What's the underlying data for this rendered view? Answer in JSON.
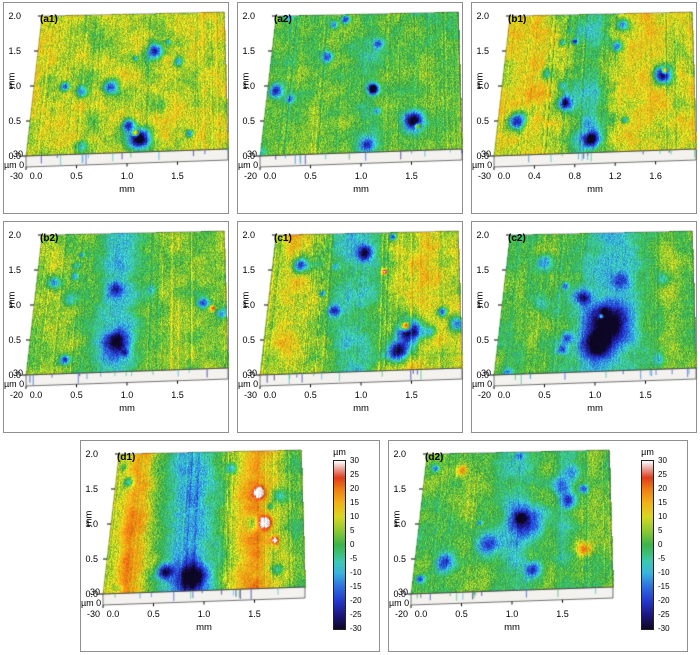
{
  "figure": {
    "background": "#ffffff",
    "panel_border_color": "#8f8f8f",
    "description": "3D optical surface topography maps of wear tracks, eight panels (a1)-(d2)"
  },
  "chart_data": {
    "type": "heatmap",
    "subtype": "3d-surface-topography",
    "xy_unit": "mm",
    "z_unit": "µm",
    "x_range_mm": [
      0.0,
      2.0
    ],
    "y_range_mm": [
      0.0,
      2.0
    ],
    "z_range_um": [
      -30,
      30
    ],
    "colorbar": {
      "unit": "µm",
      "ticks": [
        "30",
        "25",
        "20",
        "15",
        "10",
        "5",
        "0",
        "-5",
        "-10",
        "-15",
        "-20",
        "-25",
        "-30"
      ]
    },
    "colormap": [
      {
        "t": 0.0,
        "c": "#0d0726"
      },
      {
        "t": 0.083,
        "c": "#1c1680"
      },
      {
        "t": 0.167,
        "c": "#2438cc"
      },
      {
        "t": 0.25,
        "c": "#2e6ee0"
      },
      {
        "t": 0.333,
        "c": "#38b4dc"
      },
      {
        "t": 0.4,
        "c": "#3cc8b4"
      },
      {
        "t": 0.458,
        "c": "#3cbe6e"
      },
      {
        "t": 0.5,
        "c": "#3cb44a"
      },
      {
        "t": 0.583,
        "c": "#8cc832"
      },
      {
        "t": 0.667,
        "c": "#d7d722"
      },
      {
        "t": 0.75,
        "c": "#f2b217"
      },
      {
        "t": 0.833,
        "c": "#ef7d12"
      },
      {
        "t": 0.9,
        "c": "#e03c1c"
      },
      {
        "t": 0.955,
        "c": "#eaa49c"
      },
      {
        "t": 1.0,
        "c": "#ffffff"
      }
    ],
    "panels": [
      {
        "label": "(a1)",
        "x_label": "mm",
        "y_label": "mm",
        "y_ticks": [
          "2.0",
          "1.5",
          "1.0",
          "0.5",
          "0.0"
        ],
        "x_ticks": [
          "0.0",
          "0.5",
          "1.0",
          "1.5"
        ],
        "z_ticks": [
          "30",
          "µm 0",
          "-30"
        ],
        "has_colorbar": false,
        "surface": {
          "seed": 11,
          "base": 8.5,
          "noise": 5.5,
          "grain": 2.5,
          "streak": 1.6,
          "bands": [
            {
              "c": 0.3,
              "w": 0.05,
              "a": -4
            },
            {
              "c": 0.62,
              "w": 0.05,
              "a": -3
            }
          ],
          "blobs": [
            {
              "x": 0.56,
              "y": 0.9,
              "r": 0.055,
              "a": -42
            },
            {
              "x": 0.5,
              "y": 0.8,
              "r": 0.035,
              "a": -28
            },
            {
              "x": 0.54,
              "y": 0.86,
              "r": 0.016,
              "a": 38
            },
            {
              "x": 0.25,
              "y": 0.55,
              "r": 0.03,
              "a": -20
            },
            {
              "x": 0.75,
              "y": 0.35,
              "r": 0.025,
              "a": -18
            }
          ],
          "pits": 7,
          "pitDepth": 22
        }
      },
      {
        "label": "(a2)",
        "x_label": "mm",
        "y_label": "mm",
        "y_ticks": [
          "2.0",
          "1.5",
          "1.0",
          "0.5",
          "0.0"
        ],
        "x_ticks": [
          "0.0",
          "0.5",
          "1.0",
          "1.5"
        ],
        "z_ticks": [
          "30",
          "µm 0",
          "-20"
        ],
        "has_colorbar": false,
        "surface": {
          "seed": 22,
          "base": 2.5,
          "noise": 4,
          "grain": 2.5,
          "streak": 1.4,
          "bands": [
            {
              "c": 0.52,
              "w": 0.07,
              "a": -4
            }
          ],
          "blobs": [
            {
              "x": 0.76,
              "y": 0.78,
              "r": 0.05,
              "a": -34
            },
            {
              "x": 0.78,
              "y": 0.82,
              "r": 0.015,
              "a": 30
            },
            {
              "x": 0.3,
              "y": 0.3,
              "r": 0.03,
              "a": -22
            },
            {
              "x": 0.55,
              "y": 0.55,
              "r": 0.025,
              "a": -18
            },
            {
              "x": 0.12,
              "y": 0.6,
              "r": 0.02,
              "a": -16
            }
          ],
          "pits": 9,
          "pitDepth": 18
        }
      },
      {
        "label": "(b1)",
        "x_label": "mm",
        "y_label": "mm",
        "y_ticks": [
          "2.0",
          "1.5",
          "1.0",
          "0.5",
          "0.0"
        ],
        "x_ticks": [
          "0.0",
          "0.4",
          "0.8",
          "1.2",
          "1.6"
        ],
        "z_ticks": [
          "30",
          "µm 0",
          "-30"
        ],
        "has_colorbar": false,
        "surface": {
          "seed": 33,
          "base": 9,
          "noise": 5,
          "grain": 2.5,
          "streak": 1.8,
          "bands": [
            {
              "c": 0.45,
              "w": 0.13,
              "a": -13
            },
            {
              "c": 0.18,
              "w": 0.06,
              "a": 3
            },
            {
              "c": 0.78,
              "w": 0.06,
              "a": 2
            }
          ],
          "blobs": [
            {
              "x": 0.84,
              "y": 0.45,
              "r": 0.05,
              "a": -40
            },
            {
              "x": 0.85,
              "y": 0.42,
              "r": 0.015,
              "a": 34
            },
            {
              "x": 0.1,
              "y": 0.75,
              "r": 0.045,
              "a": -30
            },
            {
              "x": 0.48,
              "y": 0.9,
              "r": 0.04,
              "a": -30
            },
            {
              "x": 0.62,
              "y": 0.08,
              "r": 0.03,
              "a": -22
            },
            {
              "x": 0.3,
              "y": 0.2,
              "r": 0.02,
              "a": -16
            }
          ],
          "pits": 7,
          "pitDepth": 20
        }
      },
      {
        "label": "(b2)",
        "x_label": "mm",
        "y_label": "mm",
        "y_ticks": [
          "2.0",
          "1.5",
          "1.0",
          "0.5",
          "0.0"
        ],
        "x_ticks": [
          "0.0",
          "0.5",
          "1.0",
          "1.5"
        ],
        "z_ticks": [
          "30",
          "µm 0",
          "-20"
        ],
        "has_colorbar": false,
        "surface": {
          "seed": 44,
          "base": 4,
          "noise": 4,
          "grain": 2.5,
          "streak": 1.6,
          "bands": [
            {
              "c": 0.44,
              "w": 0.12,
              "a": -13
            },
            {
              "c": 0.08,
              "w": 0.05,
              "a": 2
            }
          ],
          "blobs": [
            {
              "x": 0.44,
              "y": 0.78,
              "r": 0.06,
              "a": -26
            },
            {
              "x": 0.42,
              "y": 0.4,
              "r": 0.04,
              "a": -16
            },
            {
              "x": 0.88,
              "y": 0.52,
              "r": 0.03,
              "a": -22
            },
            {
              "x": 0.93,
              "y": 0.56,
              "r": 0.015,
              "a": 22
            },
            {
              "x": 0.2,
              "y": 0.3,
              "r": 0.02,
              "a": -14
            }
          ],
          "pits": 8,
          "pitDepth": 16
        }
      },
      {
        "label": "(c1)",
        "x_label": "mm",
        "y_label": "mm",
        "y_ticks": [
          "2.0",
          "1.5",
          "1.0",
          "0.5",
          "0.0"
        ],
        "x_ticks": [
          "0.0",
          "0.5",
          "1.0",
          "1.5"
        ],
        "z_ticks": [
          "30",
          "µm 0",
          "-30"
        ],
        "has_colorbar": false,
        "surface": {
          "seed": 55,
          "base": 8,
          "noise": 5,
          "grain": 2.5,
          "streak": 1.8,
          "bands": [
            {
              "c": 0.44,
              "w": 0.16,
              "a": -14
            },
            {
              "c": 0.1,
              "w": 0.06,
              "a": 4
            },
            {
              "c": 0.82,
              "w": 0.07,
              "a": 3
            }
          ],
          "blobs": [
            {
              "x": 0.74,
              "y": 0.72,
              "r": 0.07,
              "a": -42
            },
            {
              "x": 0.68,
              "y": 0.86,
              "r": 0.05,
              "a": -34
            },
            {
              "x": 0.72,
              "y": 0.68,
              "r": 0.022,
              "a": 42
            },
            {
              "x": 0.15,
              "y": 0.22,
              "r": 0.04,
              "a": -24
            },
            {
              "x": 0.35,
              "y": 0.55,
              "r": 0.03,
              "a": -20
            },
            {
              "x": 0.6,
              "y": 0.28,
              "r": 0.014,
              "a": 30
            }
          ],
          "pits": 7,
          "pitDepth": 20
        }
      },
      {
        "label": "(c2)",
        "x_label": "mm",
        "y_label": "mm",
        "y_ticks": [
          "2.0",
          "1.5",
          "1.0",
          "0.5",
          "0.0"
        ],
        "x_ticks": [
          "0.0",
          "0.5",
          "1.0",
          "1.5"
        ],
        "z_ticks": [
          "30",
          "µm 0",
          "-20"
        ],
        "has_colorbar": false,
        "surface": {
          "seed": 66,
          "base": 1.5,
          "noise": 3.5,
          "grain": 2.5,
          "streak": 1.4,
          "bands": [
            {
              "c": 0.55,
              "w": 0.17,
              "a": -9
            },
            {
              "c": 0.87,
              "w": 0.06,
              "a": 4
            }
          ],
          "blobs": [
            {
              "x": 0.55,
              "y": 0.66,
              "r": 0.11,
              "a": -28
            },
            {
              "x": 0.5,
              "y": 0.82,
              "r": 0.07,
              "a": -24
            },
            {
              "x": 0.62,
              "y": 0.35,
              "r": 0.05,
              "a": -16
            },
            {
              "x": 0.2,
              "y": 0.2,
              "r": 0.04,
              "a": -14
            },
            {
              "x": 0.35,
              "y": 0.75,
              "r": 0.03,
              "a": -18
            },
            {
              "x": 0.52,
              "y": 0.6,
              "r": 0.012,
              "a": 26
            }
          ],
          "pits": 9,
          "pitDepth": 14
        }
      },
      {
        "label": "(d1)",
        "x_label": "mm",
        "y_label": "mm",
        "y_ticks": [
          "2.0",
          "1.5",
          "1.0",
          "0.5",
          "0.0"
        ],
        "x_ticks": [
          "0.0",
          "0.5",
          "1.0",
          "1.5"
        ],
        "z_ticks": [
          "30",
          "µm 0",
          "-30"
        ],
        "has_colorbar": true,
        "surface": {
          "seed": 77,
          "base": 6,
          "noise": 4,
          "grain": 2.5,
          "streak": 1.8,
          "bands": [
            {
              "c": 0.12,
              "w": 0.07,
              "a": 13
            },
            {
              "c": 0.42,
              "w": 0.15,
              "a": -17
            },
            {
              "c": 0.74,
              "w": 0.1,
              "a": 12
            },
            {
              "c": 0.97,
              "w": 0.04,
              "a": -5
            }
          ],
          "blobs": [
            {
              "x": 0.44,
              "y": 0.9,
              "r": 0.07,
              "a": -26
            },
            {
              "x": 0.3,
              "y": 0.85,
              "r": 0.04,
              "a": -24
            },
            {
              "x": 0.8,
              "y": 0.52,
              "r": 0.035,
              "a": 30
            },
            {
              "x": 0.77,
              "y": 0.3,
              "r": 0.028,
              "a": 26
            },
            {
              "x": 0.85,
              "y": 0.65,
              "r": 0.02,
              "a": 24
            },
            {
              "x": 0.62,
              "y": 0.12,
              "r": 0.03,
              "a": -18
            },
            {
              "x": 0.07,
              "y": 0.2,
              "r": 0.025,
              "a": -16
            }
          ],
          "pits": 6,
          "pitDepth": 16
        }
      },
      {
        "label": "(d2)",
        "x_label": "mm",
        "y_label": "mm",
        "y_ticks": [
          "2.0",
          "1.5",
          "1.0",
          "0.5",
          "0.0"
        ],
        "x_ticks": [
          "0.0",
          "0.5",
          "1.0",
          "1.5"
        ],
        "z_ticks": [
          "30",
          "µm 0",
          "-20"
        ],
        "has_colorbar": true,
        "surface": {
          "seed": 88,
          "base": 2,
          "noise": 4,
          "grain": 2.5,
          "streak": 1.5,
          "bands": [
            {
              "c": 0.5,
              "w": 0.1,
              "a": -6
            },
            {
              "c": 0.76,
              "w": 0.06,
              "a": -4
            }
          ],
          "blobs": [
            {
              "x": 0.56,
              "y": 0.5,
              "r": 0.09,
              "a": -24
            },
            {
              "x": 0.36,
              "y": 0.66,
              "r": 0.06,
              "a": -22
            },
            {
              "x": 0.74,
              "y": 0.25,
              "r": 0.05,
              "a": -18
            },
            {
              "x": 0.15,
              "y": 0.78,
              "r": 0.05,
              "a": -20
            },
            {
              "x": 0.86,
              "y": 0.72,
              "r": 0.035,
              "a": 18
            },
            {
              "x": 0.2,
              "y": 0.12,
              "r": 0.03,
              "a": 16
            },
            {
              "x": 0.6,
              "y": 0.85,
              "r": 0.04,
              "a": -20
            }
          ],
          "pits": 9,
          "pitDepth": 16
        }
      }
    ]
  }
}
